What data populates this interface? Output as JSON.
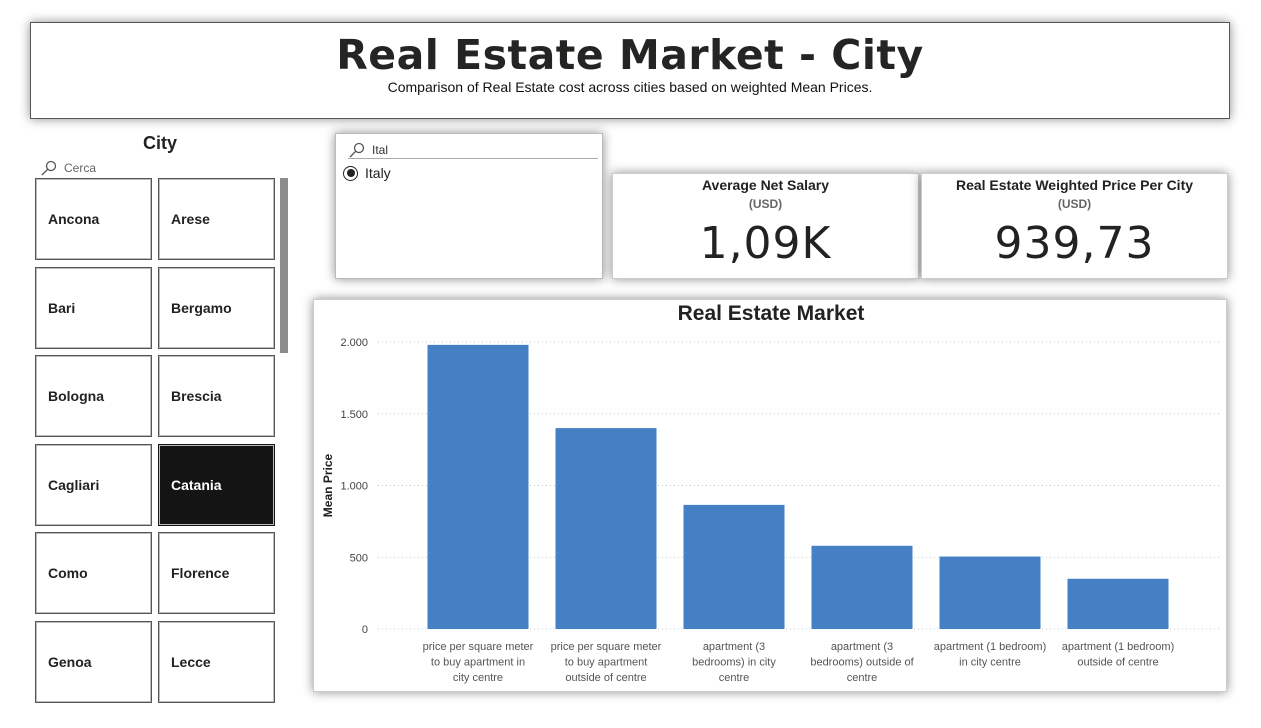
{
  "header": {
    "title": "Real Estate Market - City",
    "subtitle": "Comparison of Real Estate cost across cities based on weighted Mean Prices."
  },
  "city_slicer": {
    "title": "City",
    "search_placeholder": "Cerca",
    "cities": [
      "Ancona",
      "Arese",
      "Bari",
      "Bergamo",
      "Bologna",
      "Brescia",
      "Cagliari",
      "Catania",
      "Como",
      "Florence",
      "Genoa",
      "Lecce"
    ],
    "selected": "Catania"
  },
  "country_slicer": {
    "search_value": "Ital",
    "option": "Italy",
    "option_selected": true
  },
  "kpis": {
    "salary": {
      "title": "Average Net Salary",
      "unit": "(USD)",
      "value": "1,09K"
    },
    "price": {
      "title": "Real Estate Weighted Price Per City",
      "unit": "(USD)",
      "value": "939,73"
    }
  },
  "chart_data": {
    "type": "bar",
    "title": "Real Estate Market",
    "xlabel": "",
    "ylabel": "Mean Price",
    "ylim": [
      0,
      2000
    ],
    "yticks": [
      0,
      500,
      1000,
      1500,
      2000
    ],
    "ytick_labels": [
      "0",
      "500",
      "1.000",
      "1.500",
      "2.000"
    ],
    "grid": true,
    "color": "#4580c4",
    "categories": [
      "price per square meter to buy apartment in city centre",
      "price per square meter to buy apartment outside of centre",
      "apartment (3 bedrooms) in city centre",
      "apartment (3 bedrooms) outside of centre",
      "apartment (1 bedroom) in city centre",
      "apartment (1 bedroom) outside of centre"
    ],
    "category_lines": [
      [
        "price per square meter",
        "to buy apartment in",
        "city centre"
      ],
      [
        "price per square meter",
        "to buy apartment",
        "outside of centre"
      ],
      [
        "apartment (3",
        "bedrooms) in city",
        "centre"
      ],
      [
        "apartment (3",
        "bedrooms) outside of",
        "centre"
      ],
      [
        "apartment (1 bedroom)",
        "in city centre"
      ],
      [
        "apartment (1 bedroom)",
        "outside of centre"
      ]
    ],
    "values": [
      1980,
      1400,
      865,
      580,
      505,
      350
    ]
  }
}
